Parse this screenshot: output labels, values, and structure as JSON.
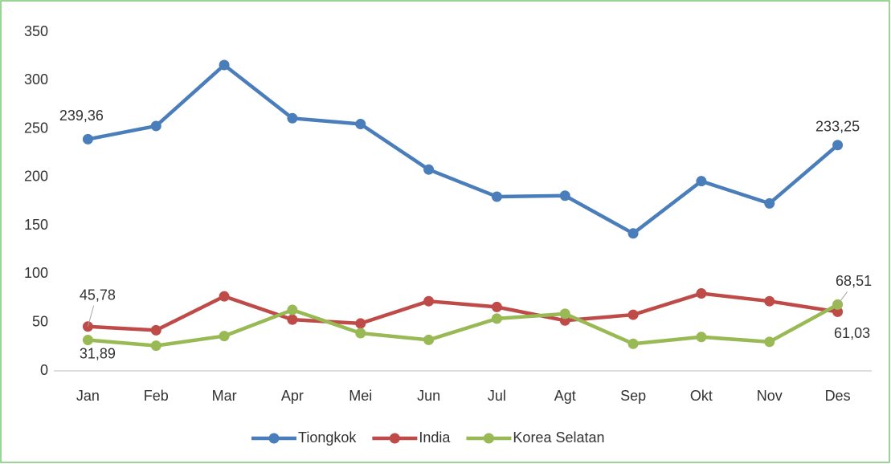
{
  "chart_data": {
    "type": "line",
    "categories": [
      "Jan",
      "Feb",
      "Mar",
      "Apr",
      "Mei",
      "Jun",
      "Jul",
      "Agt",
      "Sep",
      "Okt",
      "Nov",
      "Des"
    ],
    "series": [
      {
        "name": "Tiongkok",
        "color": "#4a7ebb",
        "values": [
          239.36,
          253,
          316,
          261,
          255,
          208,
          180,
          181,
          142,
          196,
          173,
          233.25
        ],
        "value_labels": [
          "239,36",
          null,
          null,
          null,
          null,
          null,
          null,
          null,
          null,
          null,
          null,
          "233,25"
        ]
      },
      {
        "name": "India",
        "color": "#be4b48",
        "values": [
          45.78,
          42,
          77,
          53,
          49,
          72,
          66,
          52,
          58,
          80,
          72,
          61.03
        ],
        "value_labels": [
          "45,78",
          null,
          null,
          null,
          null,
          null,
          null,
          null,
          null,
          null,
          null,
          "61,03"
        ]
      },
      {
        "name": "Korea Selatan",
        "color": "#98b954",
        "values": [
          31.89,
          26,
          36,
          63,
          39,
          32,
          54,
          59,
          28,
          35,
          30,
          68.51
        ],
        "value_labels": [
          "31,89",
          null,
          null,
          null,
          null,
          null,
          null,
          null,
          null,
          null,
          null,
          "68,51"
        ]
      }
    ],
    "ylim": [
      0,
      350
    ],
    "yticks": [
      0,
      50,
      100,
      150,
      200,
      250,
      300,
      350
    ],
    "legend": "bottom"
  }
}
